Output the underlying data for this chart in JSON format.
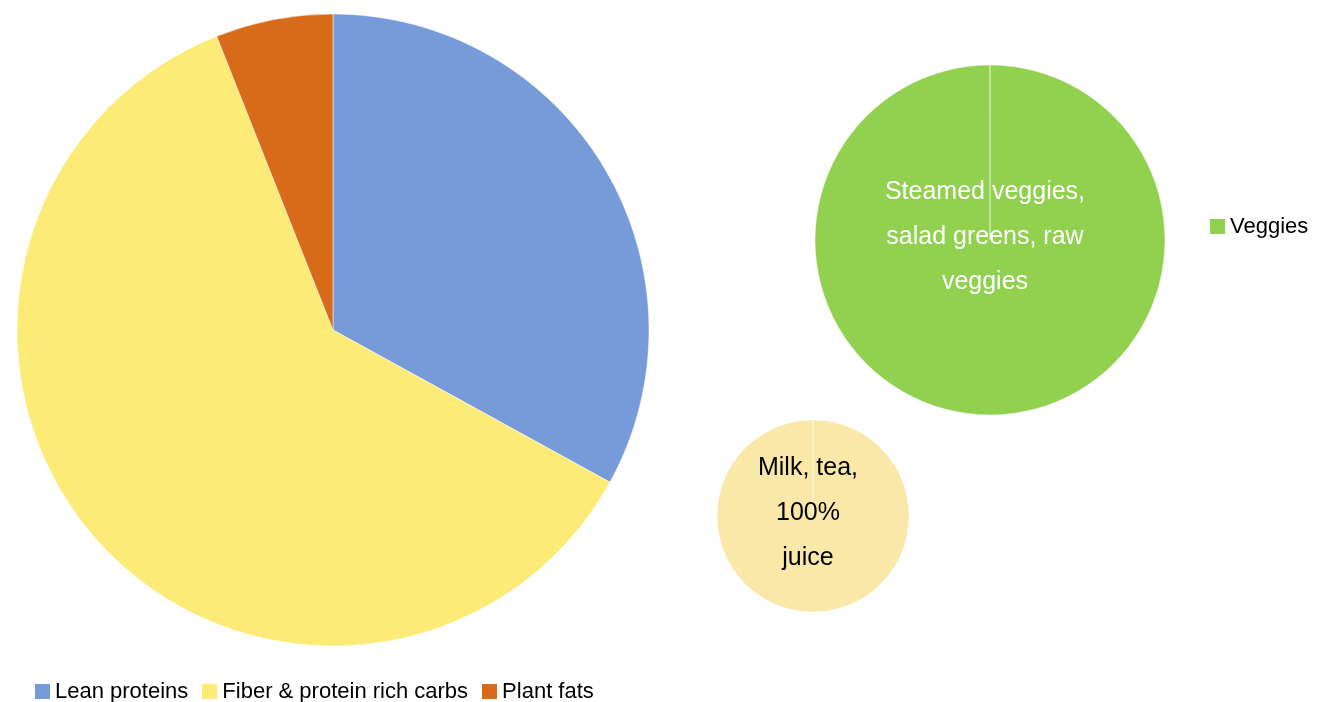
{
  "chart_data": [
    {
      "type": "pie",
      "categories": [
        "Lean proteins",
        "Fiber & protein rich carbs",
        "Plant fats"
      ],
      "values": [
        33,
        61,
        6
      ],
      "colors": [
        "#779ad8",
        "#fdeb78",
        "#d86b1a"
      ],
      "legend": "bottom"
    },
    {
      "type": "pie",
      "categories": [
        "Veggies"
      ],
      "values": [
        100
      ],
      "colors": [
        "#92d050"
      ],
      "legend": "right",
      "annotations": [
        "Steamed veggies, salad greens, raw veggies"
      ]
    },
    {
      "type": "pie",
      "categories": [
        null
      ],
      "values": [
        100
      ],
      "colors": [
        "#f9e8a8"
      ],
      "annotations": [
        "Milk, tea, 100% juice"
      ]
    }
  ]
}
